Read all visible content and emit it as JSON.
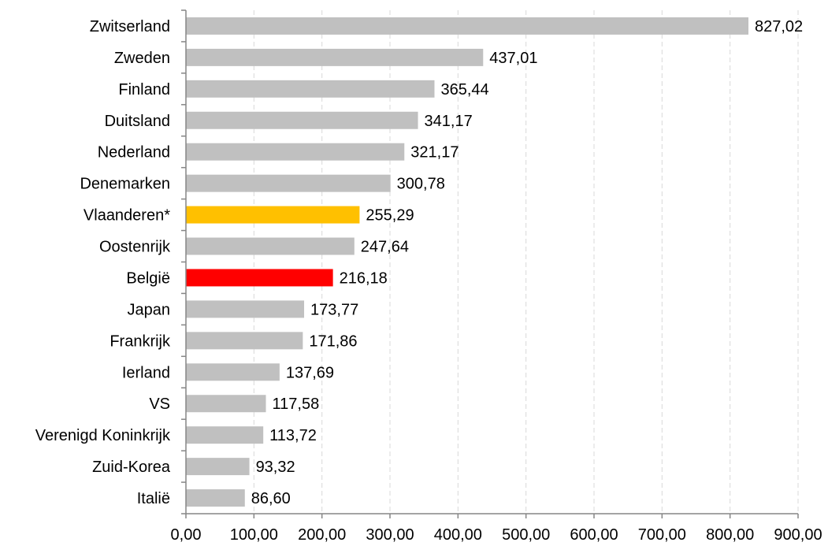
{
  "chart_data": {
    "type": "bar",
    "orientation": "horizontal",
    "categories": [
      "Zwitserland",
      "Zweden",
      "Finland",
      "Duitsland",
      "Nederland",
      "Denemarken",
      "Vlaanderen*",
      "Oostenrijk",
      "België",
      "Japan",
      "Frankrijk",
      "Ierland",
      "VS",
      "Verenigd Koninkrijk",
      "Zuid-Korea",
      "Italië"
    ],
    "values": [
      827.02,
      437.01,
      365.44,
      341.17,
      321.17,
      300.78,
      255.29,
      247.64,
      216.18,
      173.77,
      171.86,
      137.69,
      117.58,
      113.72,
      93.32,
      86.6
    ],
    "value_labels": [
      "827,02",
      "437,01",
      "365,44",
      "341,17",
      "321,17",
      "300,78",
      "255,29",
      "247,64",
      "216,18",
      "173,77",
      "171,86",
      "137,69",
      "117,58",
      "113,72",
      "93,32",
      "86,60"
    ],
    "xlim": [
      0,
      900
    ],
    "xticks": [
      0,
      100,
      200,
      300,
      400,
      500,
      600,
      700,
      800,
      900
    ],
    "xtick_labels": [
      "0,00",
      "100,00",
      "200,00",
      "300,00",
      "400,00",
      "500,00",
      "600,00",
      "700,00",
      "800,00",
      "900,00"
    ],
    "grid": "vertical dashed",
    "title": "",
    "xlabel": "",
    "ylabel": "",
    "colors": {
      "default": "#c0c0c0",
      "Vlaanderen*": "#ffc000",
      "België": "#ff0000",
      "grid": "#d9d9d9",
      "axis": "#868686"
    }
  }
}
